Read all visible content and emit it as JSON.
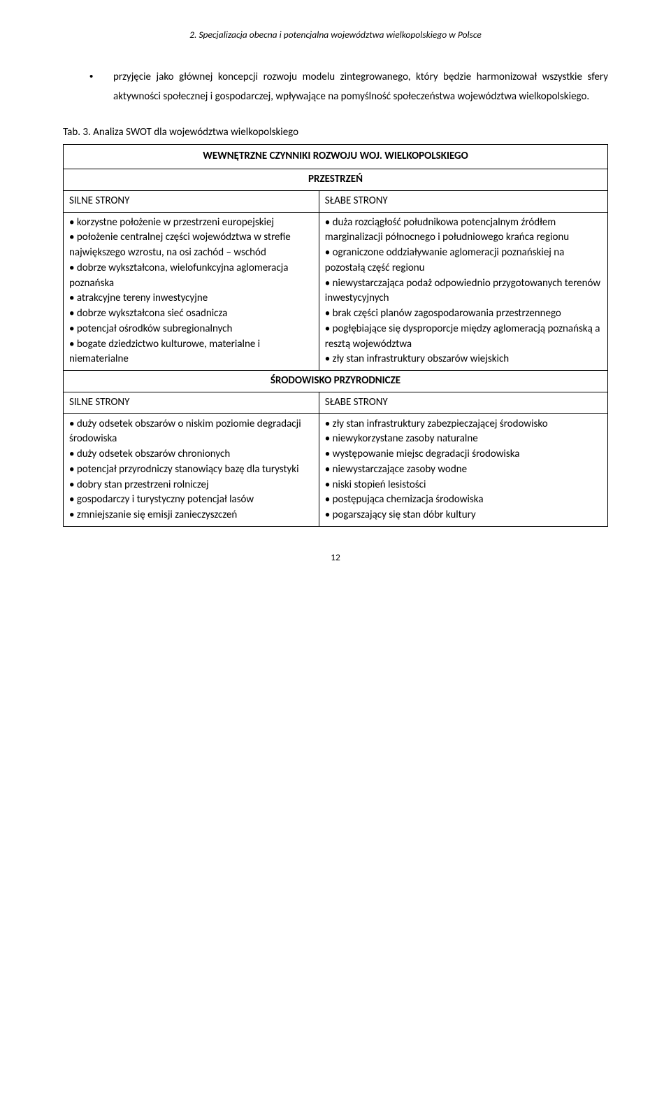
{
  "header": {
    "chapter": "2. Specjalizacja obecna i potencjalna województwa wielkopolskiego w Polsce"
  },
  "intro": {
    "bullet": "•",
    "text": "przyjęcie jako głównej koncepcji rozwoju modelu zintegrowanego, który będzie harmonizował wszystkie sfery aktywności społecznej i gospodarczej, wpływające na pomyślność społeczeństwa województwa wielkopolskiego."
  },
  "table_caption": "Tab. 3. Analiza SWOT dla województwa wielkopolskiego",
  "swot": {
    "main_header": "WEWNĘTRZNE CZYNNIKI ROZWOJU WOJ. WIELKOPOLSKIEGO",
    "sections": [
      {
        "title": "PRZESTRZEŃ",
        "left_label": "SILNE STRONY",
        "right_label": "SŁABE STRONY",
        "left_items": [
          "• korzystne położenie w przestrzeni europejskiej",
          "• położenie centralnej części województwa w strefie największego wzrostu, na osi zachód – wschód",
          "• dobrze wykształcona, wielofunkcyjna aglomeracja poznańska",
          "• atrakcyjne tereny inwestycyjne",
          "• dobrze wykształcona sieć osadnicza",
          "• potencjał ośrodków subregionalnych",
          "• bogate dziedzictwo kulturowe, materialne i niematerialne"
        ],
        "right_items": [
          "• duża rozciągłość południkowa potencjalnym źródłem marginalizacji północnego i południowego krańca regionu",
          "• ograniczone oddziaływanie aglomeracji poznańskiej na pozostałą część regionu",
          "• niewystarczająca podaż odpowiednio przygotowanych terenów inwestycyjnych",
          "• brak części planów zagospodarowania przestrzennego",
          "• pogłębiające się dysproporcje między aglomeracją poznańską a resztą województwa",
          "• zły stan infrastruktury obszarów wiejskich"
        ]
      },
      {
        "title": "ŚRODOWISKO PRZYRODNICZE",
        "left_label": "SILNE STRONY",
        "right_label": "SŁABE STRONY",
        "left_items": [
          "• duży odsetek obszarów o niskim poziomie degradacji środowiska",
          "• duży odsetek obszarów chronionych",
          "• potencjał przyrodniczy stanowiący bazę dla turystyki",
          "• dobry stan przestrzeni rolniczej",
          "• gospodarczy i turystyczny potencjał lasów",
          "• zmniejszanie się emisji zanieczyszczeń"
        ],
        "right_items": [
          "• zły stan infrastruktury zabezpieczającej środowisko",
          "• niewykorzystane zasoby naturalne",
          "• występowanie miejsc degradacji środowiska",
          "• niewystarczające zasoby wodne",
          "• niski stopień lesistości",
          "• postępująca chemizacja środowiska",
          "• pogarszający się stan dóbr kultury"
        ]
      }
    ]
  },
  "page_number": "12"
}
